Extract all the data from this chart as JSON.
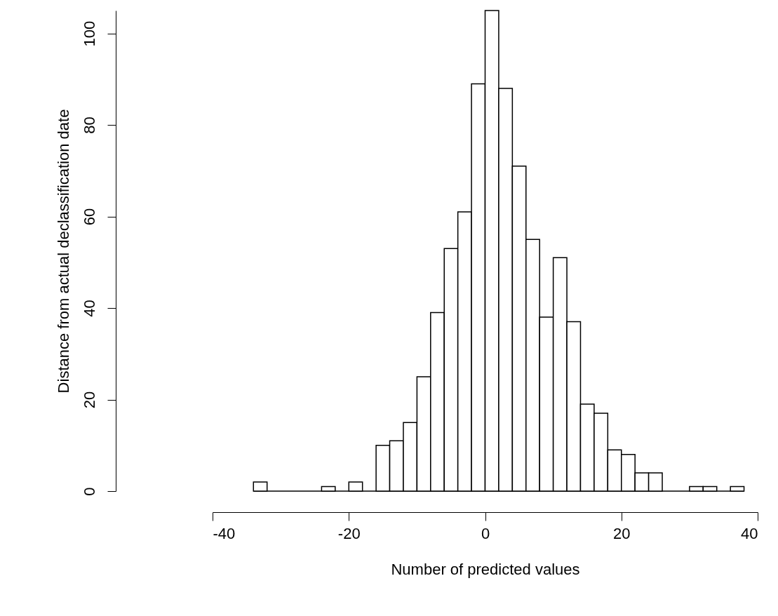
{
  "chart_data": {
    "type": "histogram",
    "xlabel": "Number of predicted values",
    "ylabel": "Distance from actual declassification date",
    "bins": [
      -34,
      -32,
      -30,
      -28,
      -26,
      -24,
      -22,
      -20,
      -18,
      -16,
      -14,
      -12,
      -10,
      -8,
      -6,
      -4,
      -2,
      0,
      2,
      4,
      6,
      8,
      10,
      12,
      14,
      16,
      18,
      20,
      22,
      24,
      26,
      28,
      30,
      32,
      34,
      36,
      38
    ],
    "values": [
      2,
      0,
      0,
      0,
      0,
      1,
      0,
      2,
      0,
      10,
      11,
      15,
      25,
      39,
      53,
      61,
      89,
      105,
      88,
      71,
      55,
      38,
      51,
      37,
      19,
      17,
      9,
      8,
      4,
      4,
      0,
      0,
      1,
      1,
      0,
      1
    ],
    "color": "#ffffff",
    "xlim": [
      -40,
      40
    ],
    "xticks": [
      -40,
      -20,
      0,
      20,
      40
    ],
    "ylim": [
      0,
      105
    ],
    "yticks": [
      0,
      20,
      40,
      60,
      80,
      100
    ],
    "grid": false
  }
}
